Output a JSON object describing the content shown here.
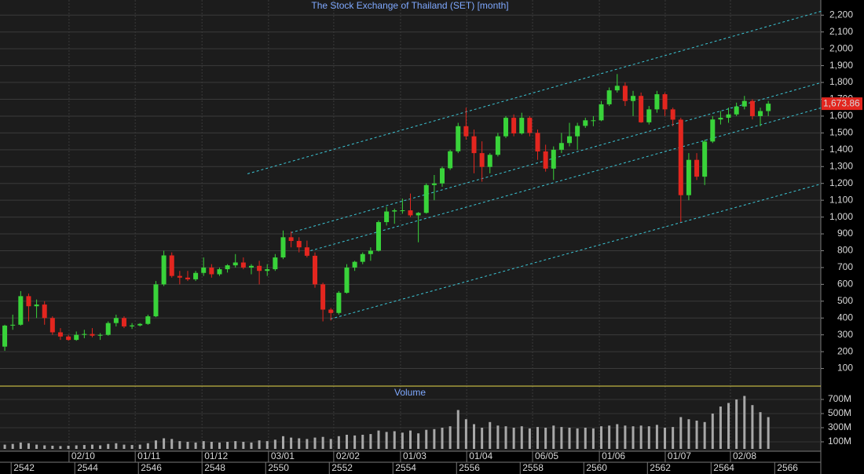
{
  "chart_data": [
    {
      "type": "candlestick",
      "title": "The Stock Exchange of Thailand (SET) [month]",
      "x": [
        2541.75,
        2542,
        2542.25,
        2542.5,
        2542.75,
        2543,
        2543.25,
        2543.5,
        2543.75,
        2544,
        2544.25,
        2544.5,
        2544.75,
        2545,
        2545.25,
        2545.5,
        2545.75,
        2546,
        2546.25,
        2546.5,
        2546.75,
        2547,
        2547.25,
        2547.5,
        2547.75,
        2548,
        2548.25,
        2548.5,
        2548.75,
        2549,
        2549.25,
        2549.5,
        2549.75,
        2550,
        2550.25,
        2550.5,
        2550.75,
        2551,
        2551.25,
        2551.5,
        2551.75,
        2552,
        2552.25,
        2552.5,
        2552.75,
        2553,
        2553.25,
        2553.5,
        2553.75,
        2554,
        2554.25,
        2554.5,
        2554.75,
        2555,
        2555.25,
        2555.5,
        2555.75,
        2556,
        2556.25,
        2556.5,
        2556.75,
        2557,
        2557.25,
        2557.5,
        2557.75,
        2558,
        2558.25,
        2558.5,
        2558.75,
        2559,
        2559.25,
        2559.5,
        2559.75,
        2560,
        2560.25,
        2560.5,
        2560.75,
        2561,
        2561.25,
        2561.5,
        2561.75,
        2562,
        2562.25,
        2562.5,
        2562.75,
        2563,
        2563.25,
        2563.5,
        2563.75,
        2564,
        2564.25,
        2564.5,
        2564.75,
        2565,
        2565.25,
        2565.5,
        2565.75
      ],
      "open": [
        230,
        355,
        360,
        530,
        470,
        480,
        400,
        315,
        290,
        270,
        300,
        305,
        295,
        300,
        370,
        400,
        350,
        356,
        365,
        410,
        600,
        772,
        650,
        640,
        630,
        668,
        700,
        660,
        690,
        713,
        730,
        700,
        710,
        680,
        690,
        760,
        880,
        858,
        820,
        770,
        600,
        450,
        430,
        550,
        700,
        734,
        780,
        800,
        970,
        1033,
        1040,
        1040,
        1010,
        1025,
        1190,
        1200,
        1290,
        1391,
        1540,
        1480,
        1380,
        1298,
        1370,
        1480,
        1590,
        1497,
        1590,
        1500,
        1390,
        1288,
        1400,
        1440,
        1480,
        1542,
        1575,
        1575,
        1670,
        1753,
        1780,
        1690,
        1720,
        1563,
        1640,
        1730,
        1640,
        1579,
        1130,
        1340,
        1240,
        1449,
        1580,
        1590,
        1610,
        1657,
        1690,
        1600,
        1630
      ],
      "high": [
        360,
        420,
        560,
        545,
        510,
        500,
        410,
        340,
        300,
        320,
        330,
        340,
        310,
        380,
        420,
        410,
        370,
        370,
        420,
        620,
        800,
        790,
        680,
        680,
        680,
        760,
        720,
        700,
        720,
        780,
        760,
        720,
        740,
        720,
        780,
        920,
        915,
        880,
        860,
        790,
        610,
        460,
        560,
        720,
        740,
        790,
        820,
        980,
        1060,
        1050,
        1110,
        1140,
        1030,
        1200,
        1250,
        1300,
        1400,
        1560,
        1650,
        1520,
        1450,
        1380,
        1500,
        1600,
        1610,
        1620,
        1600,
        1520,
        1430,
        1420,
        1500,
        1560,
        1560,
        1590,
        1600,
        1690,
        1770,
        1850,
        1800,
        1750,
        1740,
        1660,
        1750,
        1740,
        1650,
        1590,
        1380,
        1380,
        1460,
        1600,
        1630,
        1650,
        1680,
        1720,
        1700,
        1650,
        1690
      ],
      "low": [
        205,
        330,
        355,
        380,
        400,
        360,
        300,
        270,
        265,
        265,
        280,
        285,
        270,
        295,
        350,
        340,
        335,
        350,
        360,
        405,
        590,
        640,
        600,
        620,
        620,
        650,
        640,
        650,
        670,
        700,
        690,
        660,
        600,
        650,
        680,
        750,
        820,
        790,
        760,
        580,
        380,
        385,
        420,
        545,
        680,
        720,
        740,
        795,
        950,
        960,
        1020,
        1000,
        850,
        1020,
        1100,
        1180,
        1280,
        1380,
        1460,
        1260,
        1210,
        1260,
        1360,
        1470,
        1480,
        1490,
        1480,
        1340,
        1270,
        1220,
        1380,
        1420,
        1400,
        1530,
        1540,
        1570,
        1660,
        1740,
        1660,
        1600,
        1560,
        1550,
        1620,
        1600,
        1540,
        970,
        1100,
        1220,
        1190,
        1440,
        1550,
        1560,
        1600,
        1640,
        1580,
        1540,
        1600
      ],
      "close": [
        355,
        360,
        530,
        470,
        480,
        400,
        315,
        290,
        270,
        300,
        305,
        295,
        300,
        370,
        400,
        350,
        356,
        365,
        410,
        600,
        772,
        650,
        640,
        630,
        668,
        700,
        660,
        690,
        713,
        730,
        700,
        710,
        680,
        690,
        760,
        880,
        858,
        820,
        770,
        600,
        450,
        430,
        550,
        700,
        734,
        780,
        800,
        970,
        1033,
        1040,
        1040,
        1010,
        1025,
        1190,
        1200,
        1290,
        1391,
        1540,
        1480,
        1380,
        1298,
        1370,
        1480,
        1590,
        1497,
        1590,
        1500,
        1390,
        1288,
        1400,
        1440,
        1480,
        1542,
        1575,
        1575,
        1670,
        1753,
        1780,
        1690,
        1720,
        1563,
        1640,
        1730,
        1640,
        1579,
        1130,
        1340,
        1240,
        1449,
        1580,
        1590,
        1610,
        1657,
        1690,
        1600,
        1630,
        1673.86
      ],
      "up_color": "#39d33a",
      "down_color": "#e3261f",
      "xlim": [
        2541.6,
        2567.4
      ],
      "xticks": [
        2542,
        2544,
        2546,
        2548,
        2550,
        2552,
        2554,
        2556,
        2558,
        2560,
        2562,
        2564,
        2566
      ],
      "date_ticks": [
        {
          "value": 2543.77,
          "label": "02/10"
        },
        {
          "value": 2545.85,
          "label": "01/11"
        },
        {
          "value": 2547.95,
          "label": "01/12"
        },
        {
          "value": 2550.04,
          "label": "03/01"
        },
        {
          "value": 2552.09,
          "label": "02/02"
        },
        {
          "value": 2554.19,
          "label": "01/03"
        },
        {
          "value": 2556.27,
          "label": "01/04"
        },
        {
          "value": 2558.34,
          "label": "06/05"
        },
        {
          "value": 2560.44,
          "label": "01/06"
        },
        {
          "value": 2562.51,
          "label": "01/07"
        },
        {
          "value": 2564.56,
          "label": "02/08"
        }
      ],
      "ylim": [
        0,
        2290
      ],
      "yticks": [
        100,
        200,
        300,
        400,
        500,
        600,
        700,
        800,
        900,
        {
          "value": 1000,
          "label": "1,000"
        },
        {
          "value": 1100,
          "label": "1,100"
        },
        {
          "value": 1200,
          "label": "1,200"
        },
        {
          "value": 1300,
          "label": "1,300"
        },
        {
          "value": 1400,
          "label": "1,400"
        },
        {
          "value": 1500,
          "label": "1,500"
        },
        {
          "value": 1600,
          "label": "1,600"
        },
        {
          "value": 1700,
          "label": "1,700"
        },
        {
          "value": 1800,
          "label": "1,800"
        },
        {
          "value": 1900,
          "label": "1,900"
        },
        {
          "value": 2000,
          "label": "2,000"
        },
        {
          "value": 2100,
          "label": "2,100"
        },
        {
          "value": 2200,
          "label": "2,200"
        }
      ],
      "grid": true,
      "channels": [
        {
          "x": [
            2549.38,
            2567.41
          ],
          "y": [
            1257,
            2223
          ]
        },
        {
          "x": [
            2550.74,
            2567.41
          ],
          "y": [
            907,
            1799
          ]
        },
        {
          "x": [
            2551.36,
            2567.41
          ],
          "y": [
            800,
            1649
          ]
        },
        {
          "x": [
            2551.98,
            2567.41
          ],
          "y": [
            394,
            1197
          ]
        }
      ],
      "channel_color": "#3cc8d8",
      "last_price": {
        "value": 1673.86,
        "label": "1,673.86"
      }
    },
    {
      "type": "bar",
      "title": "Volume",
      "x": [
        2541.75,
        2542,
        2542.25,
        2542.5,
        2542.75,
        2543,
        2543.25,
        2543.5,
        2543.75,
        2544,
        2544.25,
        2544.5,
        2544.75,
        2545,
        2545.25,
        2545.5,
        2545.75,
        2546,
        2546.25,
        2546.5,
        2546.75,
        2547,
        2547.25,
        2547.5,
        2547.75,
        2548,
        2548.25,
        2548.5,
        2548.75,
        2549,
        2549.25,
        2549.5,
        2549.75,
        2550,
        2550.25,
        2550.5,
        2550.75,
        2551,
        2551.25,
        2551.5,
        2551.75,
        2552,
        2552.25,
        2552.5,
        2552.75,
        2553,
        2553.25,
        2553.5,
        2553.75,
        2554,
        2554.25,
        2554.5,
        2554.75,
        2555,
        2555.25,
        2555.5,
        2555.75,
        2556,
        2556.25,
        2556.5,
        2556.75,
        2557,
        2557.25,
        2557.5,
        2557.75,
        2558,
        2558.25,
        2558.5,
        2558.75,
        2559,
        2559.25,
        2559.5,
        2559.75,
        2560,
        2560.25,
        2560.5,
        2560.75,
        2561,
        2561.25,
        2561.5,
        2561.75,
        2562,
        2562.25,
        2562.5,
        2562.75,
        2563,
        2563.25,
        2563.5,
        2563.75,
        2564,
        2564.25,
        2564.5,
        2564.75,
        2565,
        2565.25,
        2565.5,
        2565.75
      ],
      "values": [
        60,
        70,
        90,
        80,
        60,
        50,
        45,
        40,
        45,
        50,
        55,
        60,
        50,
        70,
        80,
        60,
        55,
        60,
        80,
        120,
        150,
        140,
        110,
        100,
        90,
        110,
        100,
        90,
        100,
        110,
        100,
        90,
        120,
        110,
        130,
        180,
        160,
        150,
        140,
        160,
        170,
        140,
        180,
        200,
        190,
        200,
        210,
        260,
        240,
        250,
        230,
        260,
        220,
        270,
        280,
        300,
        320,
        550,
        420,
        350,
        300,
        380,
        330,
        320,
        300,
        320,
        290,
        310,
        300,
        330,
        310,
        300,
        290,
        300,
        290,
        320,
        330,
        350,
        330,
        320,
        330,
        320,
        340,
        300,
        310,
        450,
        420,
        400,
        380,
        500,
        600,
        650,
        700,
        750,
        620,
        520,
        450
      ],
      "color": "#a8a8a8",
      "ylim": [
        0,
        889
      ],
      "yticks": [
        {
          "value": 100,
          "label": "100M"
        },
        {
          "value": 300,
          "label": "300M"
        },
        {
          "value": 500,
          "label": "500M"
        },
        {
          "value": 700,
          "label": "700M"
        }
      ]
    }
  ]
}
